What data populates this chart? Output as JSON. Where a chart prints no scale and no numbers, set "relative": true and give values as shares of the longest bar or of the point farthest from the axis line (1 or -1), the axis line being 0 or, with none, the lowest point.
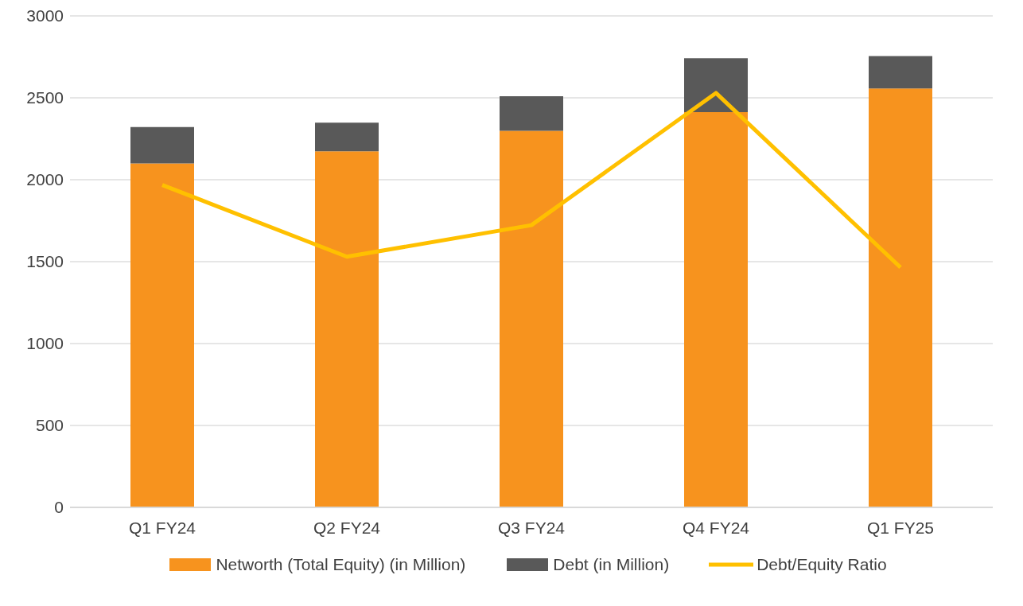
{
  "chart_data": [
    {
      "type": "bar",
      "stacked": true,
      "categories": [
        "Q1 FY24",
        "Q2 FY24",
        "Q3 FY24",
        "Q4 FY24",
        "Q1 FY25"
      ],
      "series": [
        {
          "name": "Networth (Total Equity) (in Million)",
          "color": "#f7931e",
          "values": [
            2099,
            2173,
            2298,
            2413,
            2557
          ]
        },
        {
          "name": "Debt (in Million)",
          "color": "#595959",
          "values": [
            222,
            175,
            212,
            328,
            198
          ]
        }
      ],
      "ylim": [
        0,
        3000
      ],
      "yticks": [
        0,
        500,
        1000,
        1500,
        2000,
        2500,
        3000
      ],
      "grid": "y",
      "legend": "bottom"
    },
    {
      "type": "line",
      "relative": true,
      "categories": [
        null,
        null,
        null,
        null,
        null
      ],
      "legend": "bottom",
      "marker": "none",
      "series": [
        {
          "name": "Debt/Equity Ratio",
          "color": "#ffc000",
          "values": [
            0.778,
            0.605,
            0.681,
            1,
            0.579
          ]
        }
      ]
    }
  ]
}
